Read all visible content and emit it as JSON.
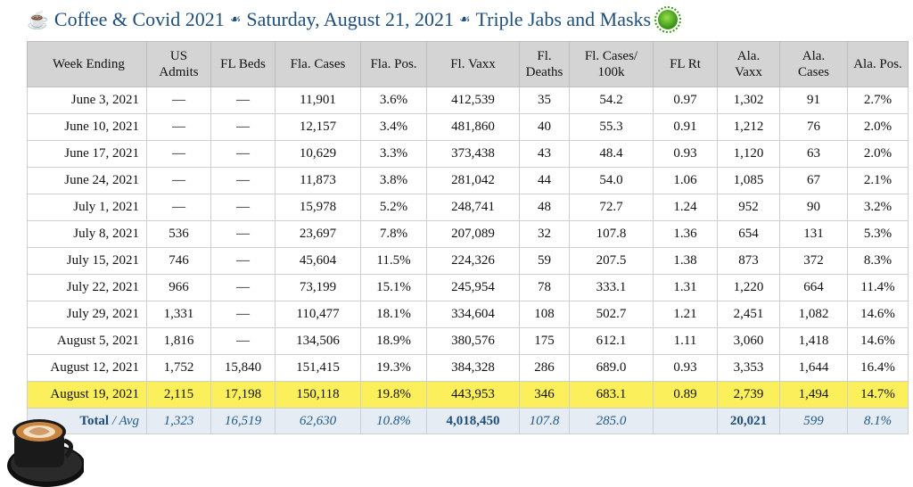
{
  "header": {
    "part1": "Coffee & Covid 2021",
    "part2": "Saturday, August 21, 2021",
    "part3": "Triple Jabs and Masks",
    "cup_icon": "☕",
    "separator_icon": "☙"
  },
  "table": {
    "headers": [
      "Week Ending",
      "US Admits",
      "FL Beds",
      "Fla. Cases",
      "Fla. Pos.",
      "Fl. Vaxx",
      "Fl. Deaths",
      "Fl. Cases/ 100k",
      "FL Rt",
      "Ala. Vaxx",
      "Ala. Cases",
      "Ala. Pos."
    ],
    "rows": [
      [
        "June 3, 2021",
        "—",
        "—",
        "11,901",
        "3.6%",
        "412,539",
        "35",
        "54.2",
        "0.97",
        "1,302",
        "91",
        "2.7%"
      ],
      [
        "June 10, 2021",
        "—",
        "—",
        "12,157",
        "3.4%",
        "481,860",
        "40",
        "55.3",
        "0.91",
        "1,212",
        "76",
        "2.0%"
      ],
      [
        "June 17, 2021",
        "—",
        "—",
        "10,629",
        "3.3%",
        "373,438",
        "43",
        "48.4",
        "0.93",
        "1,120",
        "63",
        "2.0%"
      ],
      [
        "June 24, 2021",
        "—",
        "—",
        "11,873",
        "3.8%",
        "281,042",
        "44",
        "54.0",
        "1.06",
        "1,085",
        "67",
        "2.1%"
      ],
      [
        "July 1, 2021",
        "—",
        "—",
        "15,978",
        "5.2%",
        "248,741",
        "48",
        "72.7",
        "1.24",
        "952",
        "90",
        "3.2%"
      ],
      [
        "July 8, 2021",
        "536",
        "—",
        "23,697",
        "7.8%",
        "207,089",
        "32",
        "107.8",
        "1.36",
        "654",
        "131",
        "5.3%"
      ],
      [
        "July 15, 2021",
        "746",
        "—",
        "45,604",
        "11.5%",
        "224,326",
        "59",
        "207.5",
        "1.38",
        "873",
        "372",
        "8.3%"
      ],
      [
        "July 22, 2021",
        "966",
        "—",
        "73,199",
        "15.1%",
        "245,954",
        "78",
        "333.1",
        "1.31",
        "1,220",
        "664",
        "11.4%"
      ],
      [
        "July 29, 2021",
        "1,331",
        "—",
        "110,477",
        "18.1%",
        "334,604",
        "108",
        "502.7",
        "1.21",
        "2,451",
        "1,082",
        "14.6%"
      ],
      [
        "August 5, 2021",
        "1,816",
        "—",
        "134,506",
        "18.9%",
        "380,576",
        "175",
        "612.1",
        "1.11",
        "3,060",
        "1,418",
        "14.6%"
      ],
      [
        "August 12, 2021",
        "1,752",
        "15,840",
        "151,415",
        "19.3%",
        "384,328",
        "286",
        "689.0",
        "0.93",
        "3,353",
        "1,644",
        "16.4%"
      ],
      [
        "August 19, 2021",
        "2,115",
        "17,198",
        "150,118",
        "19.8%",
        "443,953",
        "346",
        "683.1",
        "0.89",
        "2,739",
        "1,494",
        "14.7%"
      ]
    ],
    "highlight_row_index": 11,
    "highlight_color": "#fbf05b",
    "total": {
      "label_bold": "Total",
      "label_rest": " / Avg",
      "values": [
        "1,323",
        "16,519",
        "62,630",
        "10.8%",
        "4,018,450",
        "107.8",
        "285.0",
        "",
        "20,021",
        "599",
        "8.1%"
      ]
    }
  }
}
